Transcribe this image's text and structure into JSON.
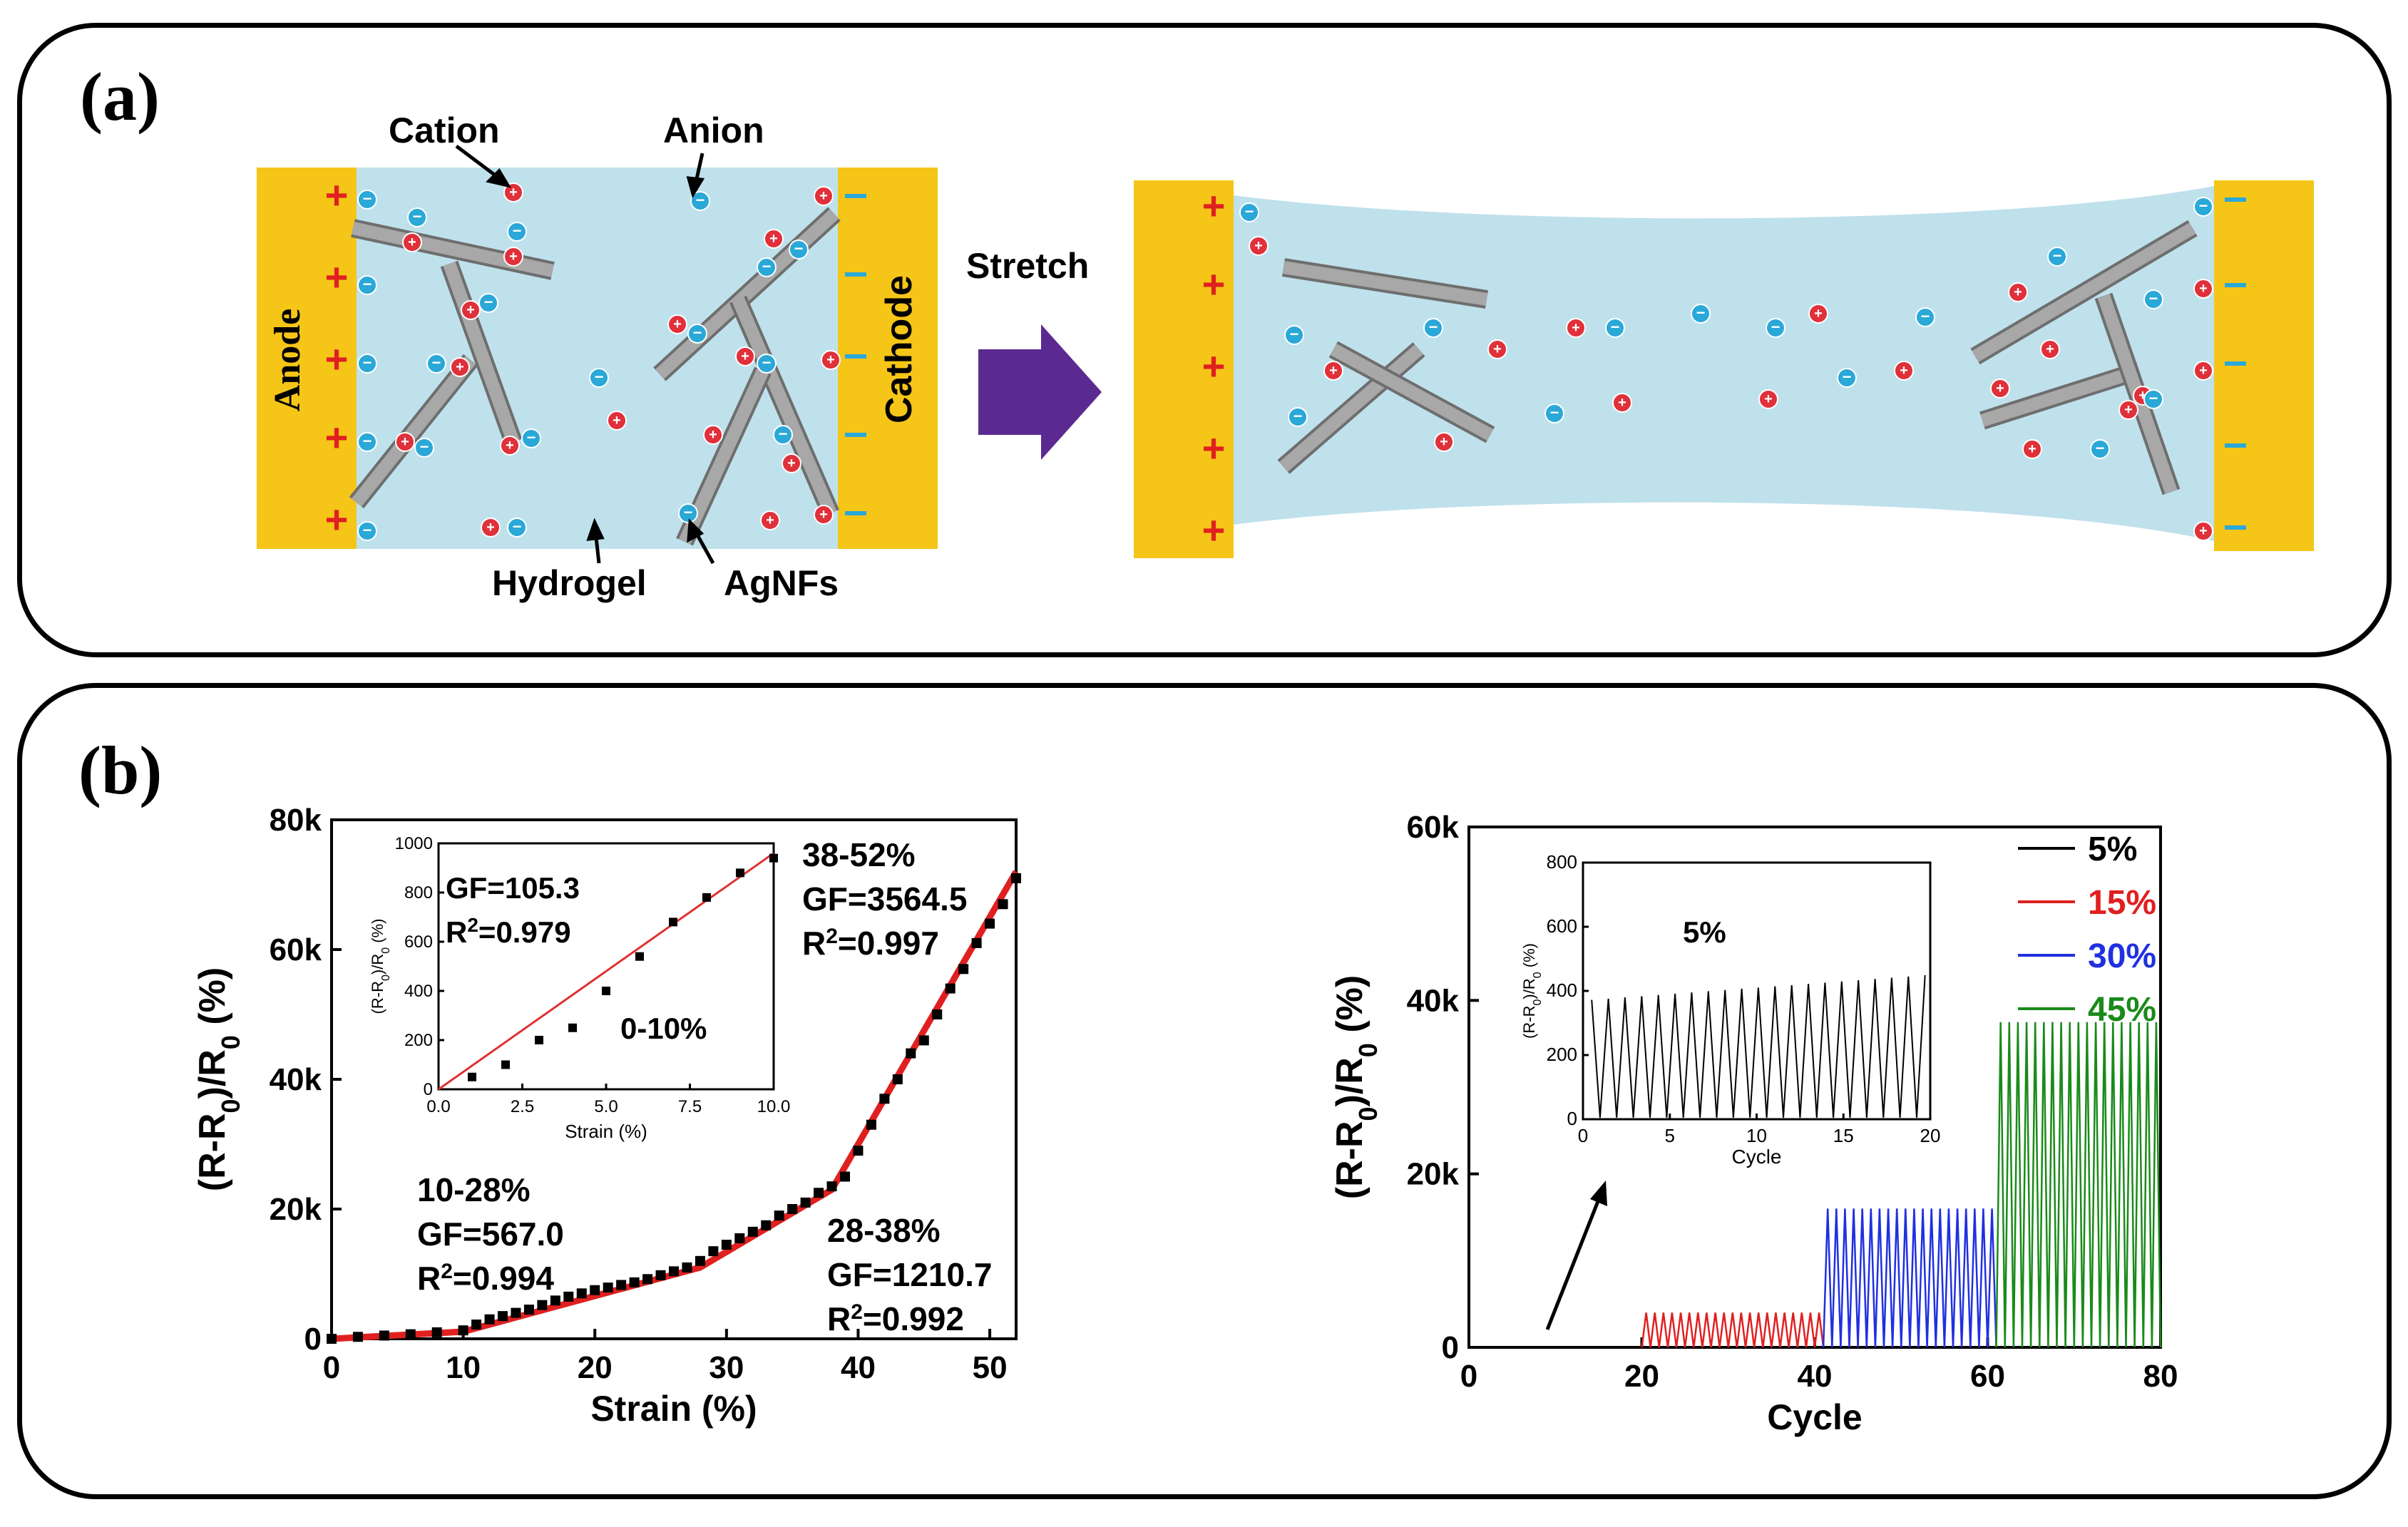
{
  "panel_a": {
    "label": "(a)",
    "cation_label": "Cation",
    "anion_label": "Anion",
    "hydrogel_label": "Hydrogel",
    "agnfs_label": "AgNFs",
    "anode_label": "Anode",
    "cathode_label": "Cathode",
    "stretch_label": "Stretch",
    "plus_sign": "+",
    "minus_sign": "−",
    "colors": {
      "electrode": "#f5c518",
      "gel": "#bfe1ec",
      "cation": "#e0303a",
      "anion": "#2aa8d8",
      "wire": "#a8a8a8",
      "arrow": "#5b2a91"
    }
  },
  "panel_b": {
    "label": "(b)"
  },
  "chart_data": [
    {
      "type": "scatter",
      "name": "strain-response",
      "xlabel": "Strain (%)",
      "ylabel": "(R-R0)/R0 (%)",
      "xlim": [
        0,
        52
      ],
      "ylim": [
        0,
        80000
      ],
      "xticks": [
        0,
        10,
        20,
        30,
        40,
        50
      ],
      "yticks": [
        "0",
        "20k",
        "40k",
        "60k",
        "80k"
      ],
      "ytick_values": [
        0,
        20000,
        40000,
        60000,
        80000
      ],
      "series": [
        {
          "name": "measured",
          "marker": "square",
          "color": "#000000",
          "x": [
            0,
            2,
            4,
            6,
            8,
            10,
            11,
            12,
            13,
            14,
            15,
            16,
            17,
            18,
            19,
            20,
            21,
            22,
            23,
            24,
            25,
            26,
            27,
            28,
            29,
            30,
            31,
            32,
            33,
            34,
            35,
            36,
            37,
            38,
            39,
            40,
            41,
            42,
            43,
            44,
            45,
            46,
            47,
            48,
            49,
            50,
            51,
            52
          ],
          "y": [
            0,
            300,
            500,
            700,
            1000,
            1300,
            2200,
            3000,
            3500,
            4000,
            4500,
            5200,
            5900,
            6500,
            7000,
            7500,
            7900,
            8300,
            8700,
            9200,
            9800,
            10400,
            11000,
            12000,
            13500,
            14500,
            15500,
            16500,
            17500,
            19000,
            20000,
            21000,
            22500,
            23500,
            25000,
            29000,
            33000,
            37000,
            40000,
            44000,
            46000,
            50000,
            54000,
            57000,
            61000,
            64000,
            67000,
            71000
          ]
        },
        {
          "name": "linear-fit",
          "color": "#e02020",
          "x": [
            0,
            10,
            28,
            38,
            52
          ],
          "y": [
            0,
            1100,
            11000,
            23000,
            72000
          ]
        }
      ],
      "annotations": [
        {
          "lines": [
            "10-28%",
            "GF=567.0",
            "R2=0.994"
          ]
        },
        {
          "lines": [
            "28-38%",
            "GF=1210.7",
            "R2=0.992"
          ]
        },
        {
          "lines": [
            "38-52%",
            "GF=3564.5",
            "R2=0.997"
          ]
        }
      ],
      "inset": {
        "xlabel": "Strain (%)",
        "ylabel": "(R-R0)/R0 (%)",
        "xlim": [
          0,
          10
        ],
        "ylim": [
          0,
          1000
        ],
        "xticks": [
          "0.0",
          "2.5",
          "5.0",
          "7.5",
          "10.0"
        ],
        "xtick_values": [
          0,
          2.5,
          5,
          7.5,
          10
        ],
        "yticks": [
          0,
          200,
          400,
          600,
          800,
          1000
        ],
        "points_x": [
          1,
          2,
          3,
          4,
          5,
          6,
          7,
          8,
          9,
          10
        ],
        "points_y": [
          50,
          100,
          200,
          250,
          400,
          540,
          680,
          780,
          880,
          940
        ],
        "fit": {
          "x": [
            0,
            10
          ],
          "y": [
            0,
            960
          ]
        },
        "gf_text": "GF=105.3",
        "r2_text": "R2=0.979",
        "range_text": "0-10%"
      }
    },
    {
      "type": "line",
      "name": "cyclic-response",
      "xlabel": "Cycle",
      "ylabel": "(R-R0)/R0 (%)",
      "xlim": [
        0,
        80
      ],
      "ylim": [
        0,
        60000
      ],
      "xticks": [
        0,
        20,
        40,
        60,
        80
      ],
      "yticks": [
        "0",
        "20k",
        "40k",
        "60k"
      ],
      "ytick_values": [
        0,
        20000,
        40000,
        60000
      ],
      "series": [
        {
          "name": "5%",
          "color": "#000000",
          "x_range": [
            0,
            20
          ],
          "amplitude": 380
        },
        {
          "name": "15%",
          "color": "#e02020",
          "x_range": [
            20,
            41
          ],
          "amplitude": 4000
        },
        {
          "name": "30%",
          "color": "#2030e0",
          "x_range": [
            41,
            61
          ],
          "amplitude": 16000
        },
        {
          "name": "45%",
          "color": "#1a8a1a",
          "x_range": [
            61,
            80
          ],
          "amplitude": 37500
        }
      ],
      "inset": {
        "xlabel": "Cycle",
        "ylabel": "(R-R0)/R0 (%)",
        "xlim": [
          0,
          20
        ],
        "ylim": [
          0,
          800
        ],
        "xticks": [
          0,
          5,
          10,
          15,
          20
        ],
        "yticks": [
          0,
          200,
          400,
          600,
          800
        ],
        "label": "5%",
        "amplitude_start": 370,
        "amplitude_end": 450
      }
    }
  ]
}
